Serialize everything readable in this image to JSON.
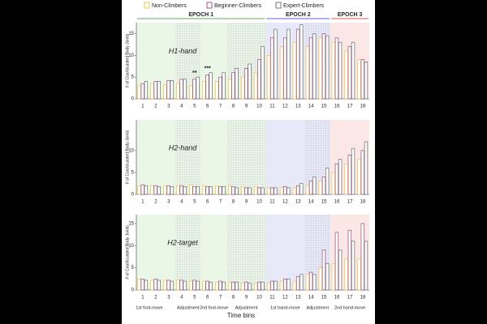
{
  "legend_title": null,
  "epochs": [
    {
      "label": "EPOCH 1",
      "color": "#2e8b2e"
    },
    {
      "label": "EPOCH 2",
      "color": "#2a2ad0"
    },
    {
      "label": "EPOCH 3",
      "color": "#d02020"
    }
  ],
  "phases": [
    "1st foot-move",
    "Adjustment",
    "2nd foot-move",
    "Adjustment",
    "1st hand-move",
    "Adjustment",
    "2nd hand-move"
  ],
  "xlabel": "Time bins",
  "chart_data": [
    {
      "type": "bar",
      "title": "H1-hand",
      "ylabel": "# of Coarticulated Body Joints",
      "categories": [
        "1",
        "2",
        "3",
        "4",
        "5",
        "6",
        "7",
        "8",
        "9",
        "10",
        "11",
        "12",
        "13",
        "14",
        "15",
        "16",
        "17",
        "18"
      ],
      "annotations": [
        {
          "text": "**",
          "category": "5"
        },
        {
          "text": "***",
          "category": "6"
        }
      ],
      "ylim": [
        0,
        17.5
      ],
      "yticks": [
        0,
        5,
        10,
        15
      ],
      "series": [
        {
          "name": "Non-Climbers",
          "color": "#e8b820",
          "values": [
            3,
            3.5,
            3.2,
            3.5,
            3,
            4,
            4,
            4.5,
            5,
            6,
            10,
            12,
            13,
            12,
            14,
            13,
            11,
            9
          ]
        },
        {
          "name": "Beginner-Climbers",
          "color": "#8b2a6b",
          "values": [
            3.5,
            4,
            4.2,
            4.5,
            4.5,
            5.5,
            5,
            6,
            7,
            9,
            14,
            14,
            16,
            14,
            15,
            14,
            12,
            9
          ]
        },
        {
          "name": "Expert-Climbers",
          "color": "#555555",
          "values": [
            4,
            4,
            4.2,
            4.5,
            5,
            6,
            6,
            7,
            8,
            12,
            16,
            16,
            17,
            15,
            14.5,
            13,
            13,
            8.5
          ]
        }
      ]
    },
    {
      "type": "bar",
      "title": "H2-hand",
      "ylabel": "# of Coarticulated Body Joints",
      "categories": [
        "1",
        "2",
        "3",
        "4",
        "5",
        "6",
        "7",
        "8",
        "9",
        "10",
        "11",
        "12",
        "13",
        "14",
        "15",
        "16",
        "17",
        "18"
      ],
      "ylim": [
        0,
        17
      ],
      "yticks": [
        0,
        5,
        10
      ],
      "series": [
        {
          "name": "Non-Climbers",
          "color": "#e8b820",
          "values": [
            2,
            2,
            2,
            2,
            2.2,
            2,
            2,
            2,
            1.8,
            1.8,
            1.5,
            1.5,
            1.5,
            2,
            3,
            5,
            7,
            8
          ]
        },
        {
          "name": "Beginner-Climbers",
          "color": "#8b2a6b",
          "values": [
            2.2,
            2,
            2,
            2,
            1.8,
            1.8,
            1.8,
            1.8,
            1.5,
            1.5,
            1.5,
            1.8,
            2,
            3,
            4,
            7,
            9,
            10
          ]
        },
        {
          "name": "Expert-Climbers",
          "color": "#555555",
          "values": [
            2,
            1.8,
            1.8,
            1.8,
            1.8,
            1.8,
            1.8,
            1.5,
            1.5,
            1.5,
            1.5,
            1.5,
            2.5,
            4,
            6,
            8,
            10.5,
            12
          ]
        }
      ]
    },
    {
      "type": "bar",
      "title": "H2-target",
      "ylabel": "# of Coarticulated Body Joints",
      "categories": [
        "1",
        "2",
        "3",
        "4",
        "5",
        "6",
        "7",
        "8",
        "9",
        "10",
        "11",
        "12",
        "13",
        "14",
        "15",
        "16",
        "17",
        "18"
      ],
      "ylim": [
        0,
        17
      ],
      "yticks": [
        0,
        5,
        10,
        15
      ],
      "series": [
        {
          "name": "Non-Climbers",
          "color": "#e8b820",
          "values": [
            2.5,
            2.2,
            2.2,
            2.2,
            2,
            2,
            1.8,
            1.8,
            1.5,
            1.5,
            1.5,
            2,
            2,
            3.5,
            5,
            6,
            7,
            7
          ]
        },
        {
          "name": "Beginner-Climbers",
          "color": "#8b2a6b",
          "values": [
            2.5,
            2.5,
            2.2,
            2.2,
            2.2,
            2,
            2,
            1.8,
            1.8,
            1.8,
            2,
            2.5,
            3,
            4,
            9,
            13,
            13.5,
            15
          ]
        },
        {
          "name": "Expert-Climbers",
          "color": "#555555",
          "values": [
            2.2,
            2.2,
            2,
            2,
            2,
            1.8,
            1.8,
            1.8,
            1.5,
            1.8,
            2,
            2.5,
            3.5,
            3.5,
            6,
            9,
            11,
            11
          ]
        }
      ]
    }
  ]
}
